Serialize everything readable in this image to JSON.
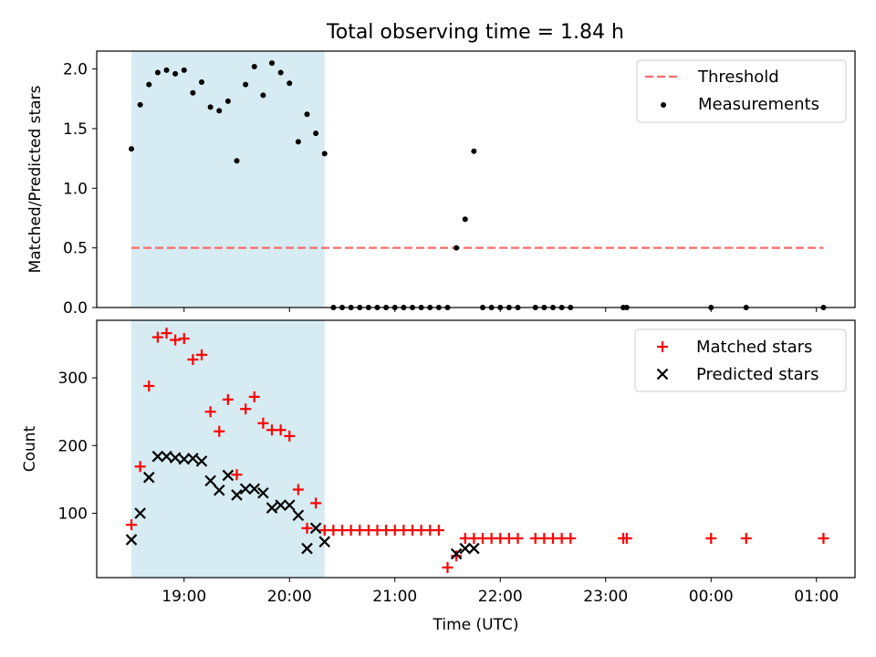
{
  "title": "Total observing time = 1.84 h",
  "colors": {
    "threshold": "#ff6b6b",
    "measurements": "#000000",
    "matched": "#ff0000",
    "predicted": "#000000",
    "span": "#add8e6"
  },
  "chart_data": [
    {
      "type": "scatter",
      "ylabel": "Matched/Predicted stars",
      "ylim": [
        0,
        2.15
      ],
      "yticks": [
        0.0,
        0.5,
        1.0,
        1.5,
        2.0
      ],
      "ytick_labels": [
        "0.0",
        "0.5",
        "1.0",
        "1.5",
        "2.0"
      ],
      "legend_position": "upper right",
      "legend": [
        {
          "label": "Threshold",
          "marker": "dashed-line"
        },
        {
          "label": "Measurements",
          "marker": "dot"
        }
      ],
      "shaded_span": {
        "from": "18:30",
        "to": "20:20"
      },
      "threshold": {
        "value": 0.5,
        "from": "18:30",
        "to": "01:04"
      },
      "measurements": {
        "x": [
          "18:30",
          "18:35",
          "18:40",
          "18:45",
          "18:50",
          "18:55",
          "19:00",
          "19:05",
          "19:10",
          "19:15",
          "19:20",
          "19:25",
          "19:30",
          "19:35",
          "19:40",
          "19:45",
          "19:50",
          "19:55",
          "20:00",
          "20:05",
          "20:10",
          "20:15",
          "20:20",
          "20:25",
          "20:30",
          "20:35",
          "20:40",
          "20:45",
          "20:50",
          "20:55",
          "21:00",
          "21:05",
          "21:10",
          "21:15",
          "21:20",
          "21:25",
          "21:30",
          "21:35",
          "21:40",
          "21:45",
          "21:50",
          "21:55",
          "22:00",
          "22:05",
          "22:10",
          "22:20",
          "22:25",
          "22:30",
          "22:35",
          "22:40",
          "23:10",
          "23:12",
          "00:00",
          "00:20",
          "01:04"
        ],
        "y": [
          1.33,
          1.7,
          1.87,
          1.97,
          1.99,
          1.96,
          1.99,
          1.8,
          1.89,
          1.68,
          1.65,
          1.73,
          1.23,
          1.87,
          2.02,
          1.78,
          2.05,
          1.97,
          1.88,
          1.39,
          1.62,
          1.46,
          1.29,
          0,
          0,
          0,
          0,
          0,
          0,
          0,
          0,
          0,
          0,
          0,
          0,
          0,
          0,
          0.5,
          0.74,
          1.31,
          0,
          0,
          0,
          0,
          0,
          0,
          0,
          0,
          0,
          0,
          0,
          0,
          0,
          0,
          0
        ]
      }
    },
    {
      "type": "scatter",
      "ylabel": "Count",
      "xlabel": "Time (UTC)",
      "ylim": [
        5,
        385
      ],
      "yticks": [
        100,
        200,
        300
      ],
      "ytick_labels": [
        "100",
        "200",
        "300"
      ],
      "xticks": [
        "19:00",
        "20:00",
        "21:00",
        "22:00",
        "23:00",
        "00:00",
        "01:00"
      ],
      "legend_position": "upper right",
      "shaded_span": {
        "from": "18:30",
        "to": "20:20"
      },
      "series": [
        {
          "name": "Matched stars",
          "marker": "plus",
          "x": [
            "18:30",
            "18:35",
            "18:40",
            "18:45",
            "18:50",
            "18:55",
            "19:00",
            "19:05",
            "19:10",
            "19:15",
            "19:20",
            "19:25",
            "19:30",
            "19:35",
            "19:40",
            "19:45",
            "19:50",
            "19:55",
            "20:00",
            "20:05",
            "20:10",
            "20:15",
            "20:20",
            "20:25",
            "20:30",
            "20:35",
            "20:40",
            "20:45",
            "20:50",
            "20:55",
            "21:00",
            "21:05",
            "21:10",
            "21:15",
            "21:20",
            "21:25",
            "21:30",
            "21:35",
            "21:40",
            "21:45",
            "21:50",
            "21:55",
            "22:00",
            "22:05",
            "22:10",
            "22:20",
            "22:25",
            "22:30",
            "22:35",
            "22:40",
            "23:10",
            "23:12",
            "00:00",
            "00:20",
            "01:04"
          ],
          "y": [
            83,
            169,
            288,
            360,
            366,
            356,
            358,
            327,
            334,
            250,
            221,
            268,
            157,
            254,
            272,
            233,
            223,
            223,
            214,
            135,
            78,
            115,
            75,
            75,
            75,
            75,
            75,
            75,
            75,
            75,
            75,
            75,
            75,
            75,
            75,
            75,
            20,
            37,
            63,
            63,
            63,
            63,
            63,
            63,
            63,
            63,
            63,
            63,
            63,
            63,
            63,
            63,
            63,
            63,
            63
          ]
        },
        {
          "name": "Predicted stars",
          "marker": "x",
          "x": [
            "18:30",
            "18:35",
            "18:40",
            "18:45",
            "18:50",
            "18:55",
            "19:00",
            "19:05",
            "19:10",
            "19:15",
            "19:20",
            "19:25",
            "19:30",
            "19:35",
            "19:40",
            "19:45",
            "19:50",
            "19:55",
            "20:00",
            "20:05",
            "20:10",
            "20:15",
            "20:20",
            "21:35",
            "21:40",
            "21:45"
          ],
          "y": [
            61,
            100,
            153,
            184,
            184,
            182,
            180,
            181,
            177,
            148,
            134,
            156,
            127,
            136,
            136,
            130,
            108,
            112,
            112,
            97,
            48,
            78,
            58,
            40,
            48,
            48
          ]
        }
      ]
    }
  ]
}
